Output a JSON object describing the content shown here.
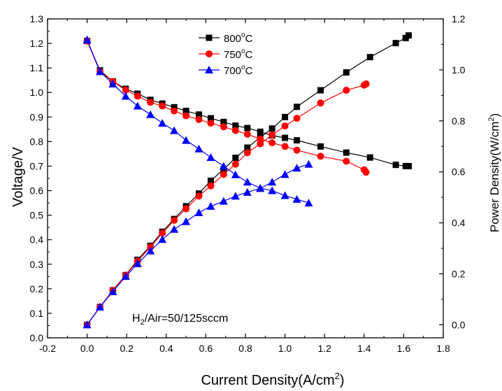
{
  "chart_data": {
    "type": "line",
    "xlabel": "Current Density(A/cm2)",
    "xlabel_parts": {
      "main": "Current Density(A/cm",
      "sup": "2",
      "end": ")"
    },
    "ylabel": "Voltage/V",
    "y2label": "Power Density(W/cm2)",
    "y2label_parts": {
      "main": "Power Density(W/cm",
      "sup": "2",
      "end": ")"
    },
    "xlim": [
      -0.2,
      1.8
    ],
    "ylim": [
      0.0,
      1.3
    ],
    "y2lim": [
      -0.0511,
      1.2
    ],
    "xticks": [
      "-0.2",
      "0.0",
      "0.2",
      "0.4",
      "0.6",
      "0.8",
      "1.0",
      "1.2",
      "1.4",
      "1.6",
      "1.8"
    ],
    "yticks": [
      "0.0",
      "0.1",
      "0.2",
      "0.3",
      "0.4",
      "0.5",
      "0.6",
      "0.7",
      "0.8",
      "0.9",
      "1.0",
      "1.1",
      "1.2",
      "1.3"
    ],
    "y2ticks": [
      "0.0",
      "0.2",
      "0.4",
      "0.6",
      "0.8",
      "1.0",
      "1.2"
    ],
    "grid": false,
    "legend_position": "top-center",
    "annotation": {
      "prefix": "H",
      "sub": "2",
      "rest": "/Air=50/125sccm"
    },
    "series": [
      {
        "name": "800°C",
        "legend_parts": {
          "main": "800",
          "sup": "o",
          "end": "C"
        },
        "color": "#000000",
        "marker": "square",
        "voltage": {
          "x": [
            0.0,
            0.065,
            0.13,
            0.195,
            0.255,
            0.32,
            0.38,
            0.44,
            0.5,
            0.565,
            0.625,
            0.69,
            0.75,
            0.81,
            0.875,
            0.935,
            1.0,
            1.06,
            1.18,
            1.31,
            1.43,
            1.56,
            1.61,
            1.625
          ],
          "y": [
            1.21,
            1.09,
            1.045,
            1.015,
            0.995,
            0.97,
            0.955,
            0.94,
            0.925,
            0.91,
            0.895,
            0.88,
            0.865,
            0.855,
            0.84,
            0.825,
            0.815,
            0.805,
            0.78,
            0.755,
            0.735,
            0.705,
            0.7,
            0.7
          ]
        },
        "power": {
          "x": [
            0.0,
            0.065,
            0.13,
            0.195,
            0.255,
            0.32,
            0.38,
            0.44,
            0.5,
            0.565,
            0.625,
            0.69,
            0.75,
            0.81,
            0.875,
            0.935,
            1.0,
            1.06,
            1.18,
            1.31,
            1.43,
            1.56,
            1.61,
            1.625
          ],
          "y": [
            0.0,
            0.07,
            0.135,
            0.195,
            0.255,
            0.31,
            0.365,
            0.415,
            0.465,
            0.515,
            0.565,
            0.61,
            0.655,
            0.695,
            0.735,
            0.77,
            0.815,
            0.855,
            0.92,
            0.99,
            1.05,
            1.105,
            1.125,
            1.135
          ]
        }
      },
      {
        "name": "750°C",
        "legend_parts": {
          "main": "750",
          "sup": "o",
          "end": "C"
        },
        "color": "#ff0000",
        "marker": "circle",
        "voltage": {
          "x": [
            0.0,
            0.065,
            0.13,
            0.195,
            0.255,
            0.32,
            0.38,
            0.44,
            0.5,
            0.565,
            0.625,
            0.69,
            0.75,
            0.81,
            0.875,
            0.935,
            1.0,
            1.06,
            1.18,
            1.31,
            1.4,
            1.41
          ],
          "y": [
            1.21,
            1.085,
            1.045,
            1.01,
            0.985,
            0.96,
            0.945,
            0.925,
            0.905,
            0.89,
            0.875,
            0.86,
            0.845,
            0.83,
            0.81,
            0.795,
            0.78,
            0.765,
            0.74,
            0.72,
            0.685,
            0.675
          ]
        },
        "power": {
          "x": [
            0.0,
            0.065,
            0.13,
            0.195,
            0.255,
            0.32,
            0.38,
            0.44,
            0.5,
            0.565,
            0.625,
            0.69,
            0.75,
            0.81,
            0.875,
            0.935,
            1.0,
            1.06,
            1.18,
            1.31,
            1.4,
            1.41
          ],
          "y": [
            0.0,
            0.07,
            0.135,
            0.195,
            0.25,
            0.305,
            0.36,
            0.41,
            0.455,
            0.505,
            0.545,
            0.59,
            0.63,
            0.675,
            0.71,
            0.745,
            0.78,
            0.81,
            0.87,
            0.92,
            0.94,
            0.945
          ]
        }
      },
      {
        "name": "700°C",
        "legend_parts": {
          "main": "700",
          "sup": "o",
          "end": "C"
        },
        "color": "#0000ff",
        "marker": "triangle",
        "voltage": {
          "x": [
            0.0,
            0.065,
            0.13,
            0.195,
            0.255,
            0.32,
            0.38,
            0.44,
            0.5,
            0.565,
            0.625,
            0.69,
            0.75,
            0.81,
            0.875,
            0.935,
            1.0,
            1.06,
            1.12
          ],
          "y": [
            1.215,
            1.085,
            1.035,
            0.985,
            0.945,
            0.91,
            0.875,
            0.845,
            0.805,
            0.77,
            0.735,
            0.7,
            0.665,
            0.635,
            0.61,
            0.6,
            0.58,
            0.565,
            0.55
          ]
        },
        "power": {
          "x": [
            0.0,
            0.065,
            0.13,
            0.195,
            0.255,
            0.32,
            0.38,
            0.44,
            0.5,
            0.565,
            0.625,
            0.69,
            0.75,
            0.81,
            0.875,
            0.935,
            1.0,
            1.06,
            1.12
          ],
          "y": [
            0.0,
            0.07,
            0.13,
            0.19,
            0.24,
            0.29,
            0.335,
            0.375,
            0.405,
            0.44,
            0.465,
            0.485,
            0.505,
            0.52,
            0.535,
            0.56,
            0.59,
            0.615,
            0.63
          ]
        }
      }
    ]
  }
}
